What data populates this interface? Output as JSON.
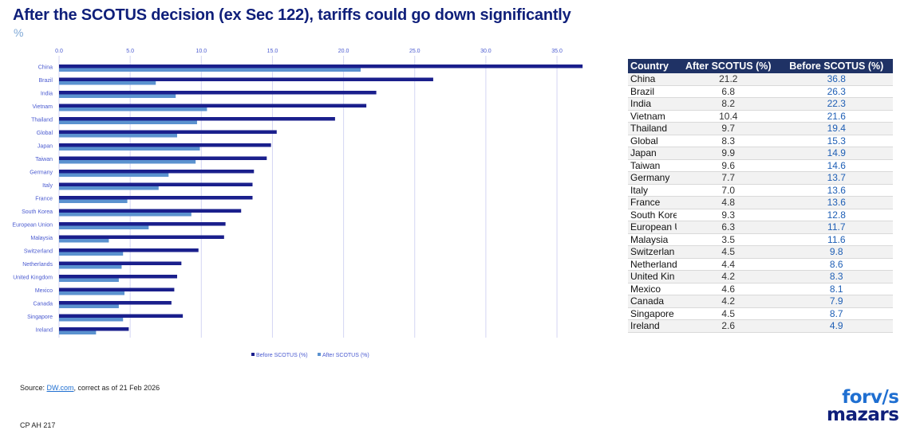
{
  "header": {
    "title": "After the SCOTUS decision (ex Sec 122), tariffs could go down significantly",
    "unit": "%"
  },
  "colors": {
    "title": "#0f1f7a",
    "before_series": "#1a1f8c",
    "after_series": "#5b92cf",
    "gridline": "#d4d6f3",
    "axis_text": "#4b5bd0",
    "table_header_bg": "#1f3265",
    "table_before_text": "#1f5fb5"
  },
  "chart_data": {
    "type": "bar",
    "orientation": "horizontal",
    "title": "After the SCOTUS decision (ex Sec 122), tariffs could go down significantly",
    "subtitle": "%",
    "xlabel": "",
    "ylabel": "",
    "xlim": [
      0,
      36.8
    ],
    "x_ticks": [
      0,
      5,
      10,
      15,
      20,
      25,
      30,
      35
    ],
    "x_tick_labels": [
      "0.0",
      "5.0",
      "10.0",
      "15.0",
      "20.0",
      "25.0",
      "30.0",
      "35.0"
    ],
    "x_axis_position": "top",
    "grid": true,
    "legend_position": "bottom",
    "categories": [
      "China",
      "Brazil",
      "India",
      "Vietnam",
      "Thailand",
      "Global",
      "Japan",
      "Taiwan",
      "Germany",
      "Italy",
      "France",
      "South Korea",
      "European Union",
      "Malaysia",
      "Switzerland",
      "Netherlands",
      "United Kingdom",
      "Mexico",
      "Canada",
      "Singapore",
      "Ireland"
    ],
    "series": [
      {
        "name": "Before SCOTUS (%)",
        "color": "#1a1f8c",
        "values": [
          36.8,
          26.3,
          22.3,
          21.6,
          19.4,
          15.3,
          14.9,
          14.6,
          13.7,
          13.6,
          13.6,
          12.8,
          11.7,
          11.6,
          9.8,
          8.6,
          8.3,
          8.1,
          7.9,
          8.7,
          4.9
        ]
      },
      {
        "name": "After SCOTUS (%)",
        "color": "#5b92cf",
        "values": [
          21.2,
          6.8,
          8.2,
          10.4,
          9.7,
          8.3,
          9.9,
          9.6,
          7.7,
          7.0,
          4.8,
          9.3,
          6.3,
          3.5,
          4.5,
          4.4,
          4.2,
          4.6,
          4.2,
          4.5,
          2.6
        ]
      }
    ]
  },
  "table": {
    "headers": [
      "Country",
      "After SCOTUS (%)",
      "Before SCOTUS (%)"
    ],
    "rows": [
      {
        "country": "China",
        "after": "21.2",
        "before": "36.8"
      },
      {
        "country": "Brazil",
        "after": "6.8",
        "before": "26.3"
      },
      {
        "country": "India",
        "after": "8.2",
        "before": "22.3"
      },
      {
        "country": "Vietnam",
        "after": "10.4",
        "before": "21.6"
      },
      {
        "country": "Thailand",
        "after": "9.7",
        "before": "19.4"
      },
      {
        "country": "Global",
        "after": "8.3",
        "before": "15.3"
      },
      {
        "country": "Japan",
        "after": "9.9",
        "before": "14.9"
      },
      {
        "country": "Taiwan",
        "after": "9.6",
        "before": "14.6"
      },
      {
        "country": "Germany",
        "after": "7.7",
        "before": "13.7"
      },
      {
        "country": "Italy",
        "after": "7.0",
        "before": "13.6"
      },
      {
        "country": "France",
        "after": "4.8",
        "before": "13.6"
      },
      {
        "country": "South Kore",
        "after": "9.3",
        "before": "12.8"
      },
      {
        "country": "European U",
        "after": "6.3",
        "before": "11.7"
      },
      {
        "country": "Malaysia",
        "after": "3.5",
        "before": "11.6"
      },
      {
        "country": "Switzerlan",
        "after": "4.5",
        "before": "9.8"
      },
      {
        "country": "Netherland",
        "after": "4.4",
        "before": "8.6"
      },
      {
        "country": "United Kin",
        "after": "4.2",
        "before": "8.3"
      },
      {
        "country": "Mexico",
        "after": "4.6",
        "before": "8.1"
      },
      {
        "country": "Canada",
        "after": "4.2",
        "before": "7.9"
      },
      {
        "country": "Singapore",
        "after": "4.5",
        "before": "8.7"
      },
      {
        "country": "Ireland",
        "after": "2.6",
        "before": "4.9"
      }
    ]
  },
  "footer": {
    "source_prefix": "Source: ",
    "source_link": "DW.com",
    "source_suffix": ", correct as of 21 Feb 2026",
    "code": "CP AH 217"
  },
  "logo": {
    "line1": "forv/s",
    "line2": "mazars"
  }
}
